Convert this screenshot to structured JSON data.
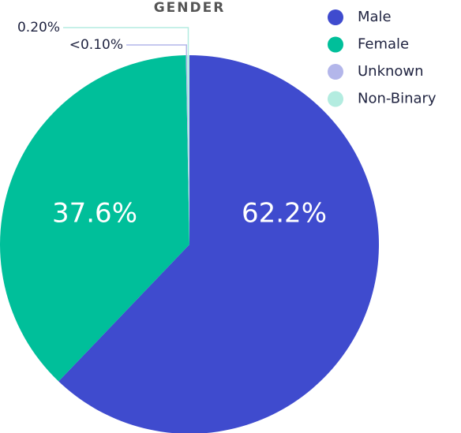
{
  "chart_data": {
    "type": "pie",
    "title": "GENDER",
    "categories": [
      "Male",
      "Female",
      "Unknown",
      "Non-Binary"
    ],
    "values": [
      62.2,
      37.6,
      0.1,
      0.2
    ],
    "value_labels": [
      "62.2%",
      "37.6%",
      "<0.10%",
      "0.20%"
    ],
    "colors": [
      "#3f4bce",
      "#00bf9a",
      "#b3b6ea",
      "#b3ece0"
    ]
  }
}
